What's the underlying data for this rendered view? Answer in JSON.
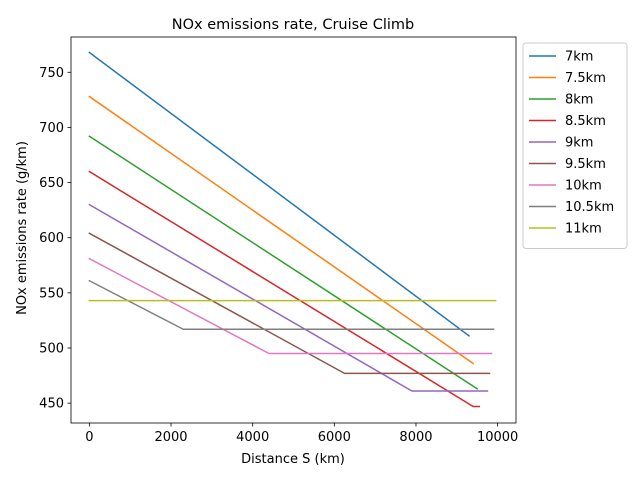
{
  "chart_data": {
    "type": "line",
    "title": "NOx emissions rate, Cruise Climb",
    "xlabel": "Distance S (km)",
    "ylabel": "NOx emissions rate (g/km)",
    "xlim": [
      -450,
      10450
    ],
    "ylim": [
      432,
      782
    ],
    "xticks": [
      0,
      2000,
      4000,
      6000,
      8000,
      10000
    ],
    "yticks": [
      450,
      500,
      550,
      600,
      650,
      700,
      750
    ],
    "grid": false,
    "legend": "outside-right-top",
    "series": [
      {
        "name": "7km",
        "color": "#1f77b4",
        "points": [
          [
            0,
            768
          ],
          [
            9300,
            511
          ]
        ]
      },
      {
        "name": "7.5km",
        "color": "#ff7f0e",
        "points": [
          [
            0,
            728
          ],
          [
            9400,
            486
          ]
        ]
      },
      {
        "name": "8km",
        "color": "#2ca02c",
        "points": [
          [
            0,
            692
          ],
          [
            9500,
            463
          ]
        ]
      },
      {
        "name": "8.5km",
        "color": "#d62728",
        "points": [
          [
            0,
            660
          ],
          [
            9400,
            447
          ],
          [
            9550,
            447
          ]
        ]
      },
      {
        "name": "9km",
        "color": "#9467bd",
        "points": [
          [
            0,
            630
          ],
          [
            7900,
            461
          ],
          [
            9750,
            461
          ]
        ]
      },
      {
        "name": "9.5km",
        "color": "#8c564b",
        "points": [
          [
            0,
            604
          ],
          [
            6250,
            477
          ],
          [
            9800,
            477
          ]
        ]
      },
      {
        "name": "10km",
        "color": "#e377c2",
        "points": [
          [
            0,
            581
          ],
          [
            4400,
            495
          ],
          [
            9850,
            495
          ]
        ]
      },
      {
        "name": "10.5km",
        "color": "#7f7f7f",
        "points": [
          [
            0,
            561
          ],
          [
            2300,
            517
          ],
          [
            9900,
            517
          ]
        ]
      },
      {
        "name": "11km",
        "color": "#bcbd22",
        "points": [
          [
            0,
            543
          ],
          [
            9950,
            543
          ]
        ]
      }
    ]
  }
}
